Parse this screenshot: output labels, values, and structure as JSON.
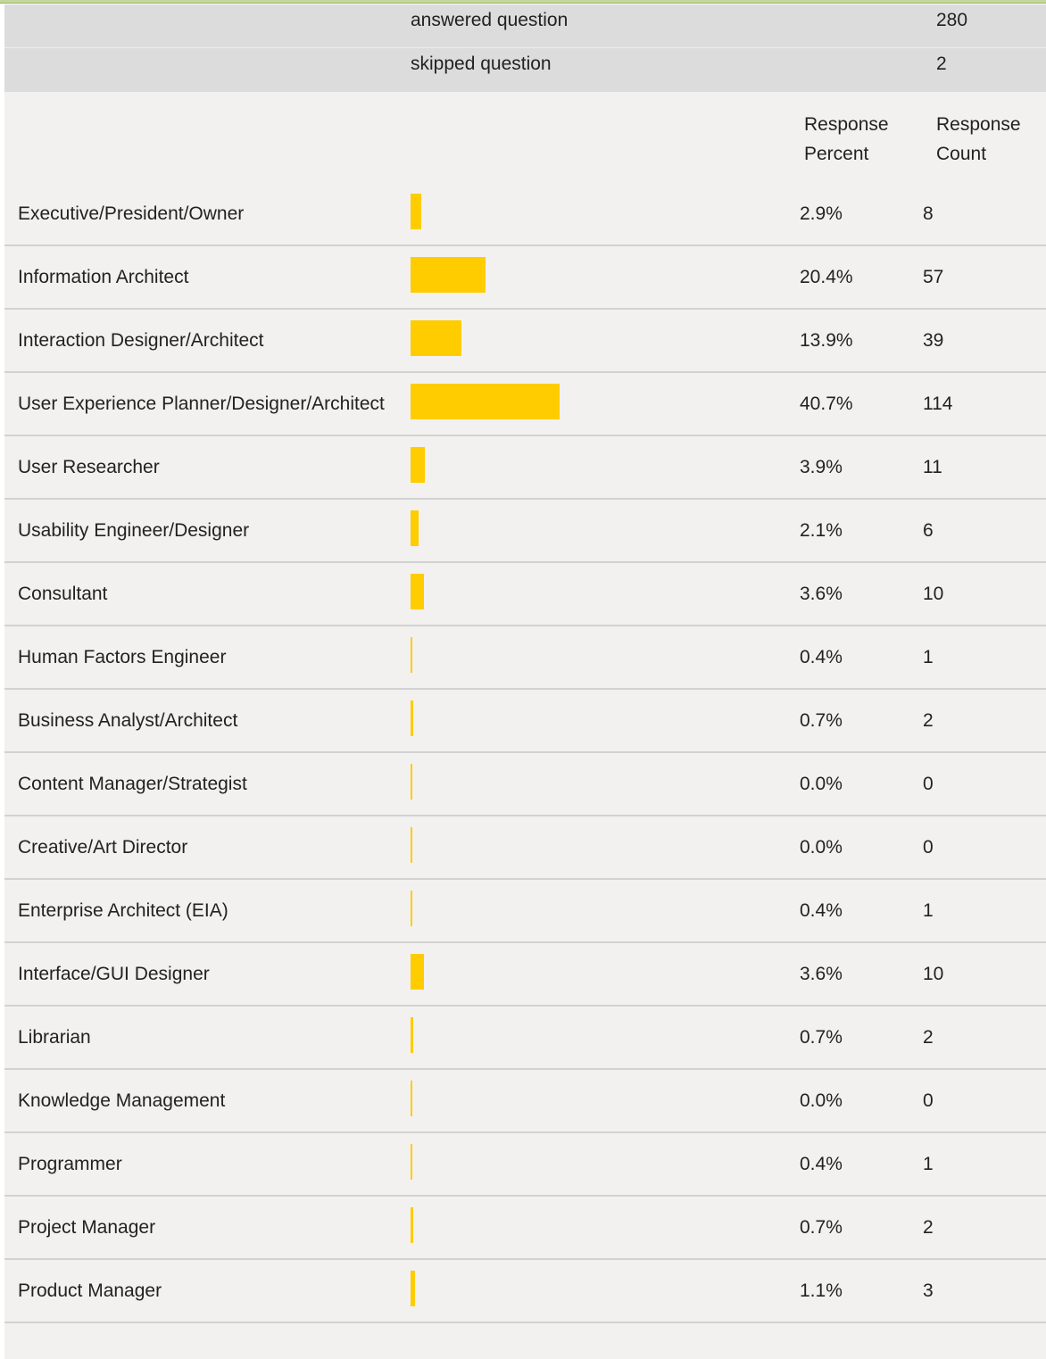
{
  "summary": [
    {
      "label": "answered question",
      "count": 280
    },
    {
      "label": "skipped question",
      "count": 2
    }
  ],
  "header": {
    "percent": "Response Percent",
    "count": "Response Count"
  },
  "rows": [
    {
      "label": "Executive/President/Owner",
      "percent": 2.9,
      "percent_label": "2.9%",
      "count": 8
    },
    {
      "label": "Information Architect",
      "percent": 20.4,
      "percent_label": "20.4%",
      "count": 57
    },
    {
      "label": "Interaction Designer/Architect",
      "percent": 13.9,
      "percent_label": "13.9%",
      "count": 39
    },
    {
      "label": "User Experience Planner/Designer/Architect",
      "percent": 40.7,
      "percent_label": "40.7%",
      "count": 114
    },
    {
      "label": "User Researcher",
      "percent": 3.9,
      "percent_label": "3.9%",
      "count": 11
    },
    {
      "label": "Usability Engineer/Designer",
      "percent": 2.1,
      "percent_label": "2.1%",
      "count": 6
    },
    {
      "label": "Consultant",
      "percent": 3.6,
      "percent_label": "3.6%",
      "count": 10
    },
    {
      "label": "Human Factors Engineer",
      "percent": 0.4,
      "percent_label": "0.4%",
      "count": 1
    },
    {
      "label": "Business Analyst/Architect",
      "percent": 0.7,
      "percent_label": "0.7%",
      "count": 2
    },
    {
      "label": "Content Manager/Strategist",
      "percent": 0.0,
      "percent_label": "0.0%",
      "count": 0
    },
    {
      "label": "Creative/Art Director",
      "percent": 0.0,
      "percent_label": "0.0%",
      "count": 0
    },
    {
      "label": "Enterprise Architect (EIA)",
      "percent": 0.4,
      "percent_label": "0.4%",
      "count": 1
    },
    {
      "label": "Interface/GUI Designer",
      "percent": 3.6,
      "percent_label": "3.6%",
      "count": 10
    },
    {
      "label": "Librarian",
      "percent": 0.7,
      "percent_label": "0.7%",
      "count": 2
    },
    {
      "label": "Knowledge Management",
      "percent": 0.0,
      "percent_label": "0.0%",
      "count": 0
    },
    {
      "label": "Programmer",
      "percent": 0.4,
      "percent_label": "0.4%",
      "count": 1
    },
    {
      "label": "Project Manager",
      "percent": 0.7,
      "percent_label": "0.7%",
      "count": 2
    },
    {
      "label": "Product Manager",
      "percent": 1.1,
      "percent_label": "1.1%",
      "count": 3
    }
  ]
}
